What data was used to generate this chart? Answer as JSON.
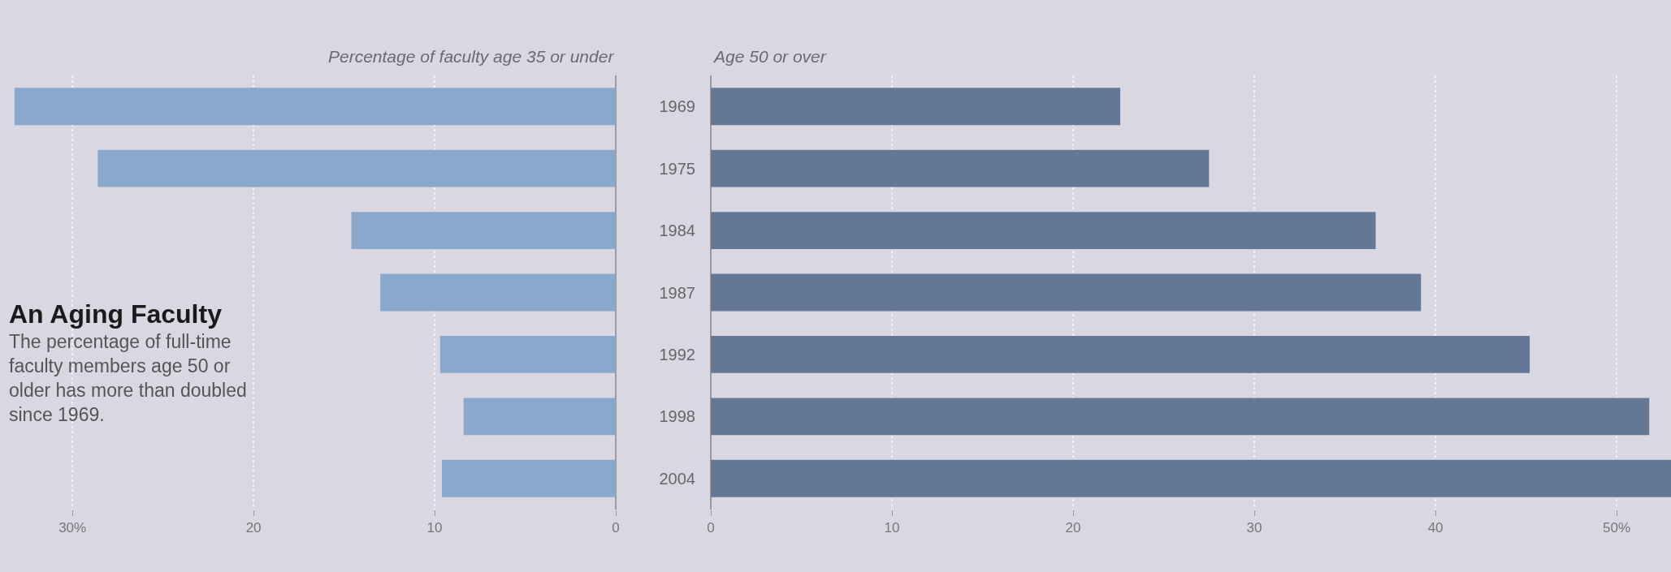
{
  "chart_data": [
    {
      "type": "bar",
      "orientation": "horizontal",
      "title": "Percentage of faculty age 35 or under",
      "categories": [
        "1969",
        "1975",
        "1984",
        "1987",
        "1992",
        "1998",
        "2004"
      ],
      "values": [
        33.2,
        28.6,
        14.6,
        13.0,
        9.7,
        8.4,
        9.6
      ],
      "color": "#8aa8cc",
      "xlim": [
        34,
        0
      ],
      "xticks": [
        {
          "value": 30,
          "label": "30%"
        },
        20,
        10,
        0
      ],
      "grid": "x",
      "tick_labels": "x",
      "annotations": [
        "An Aging Faculty",
        "The percentage of full-time faculty members age 50 or older has more than doubled since 1969."
      ]
    },
    {
      "type": "bar",
      "orientation": "horizontal",
      "title": "Age 50 or over",
      "categories": [
        "1969",
        "1975",
        "1984",
        "1987",
        "1992",
        "1998",
        "2004"
      ],
      "values": [
        22.6,
        27.5,
        36.7,
        39.2,
        45.2,
        51.8,
        53
      ],
      "color": "#647896",
      "xlim": [
        0,
        53
      ],
      "xticks": [
        0,
        10,
        20,
        30,
        40,
        {
          "value": 50,
          "label": "50%"
        }
      ],
      "grid": "x"
    }
  ]
}
